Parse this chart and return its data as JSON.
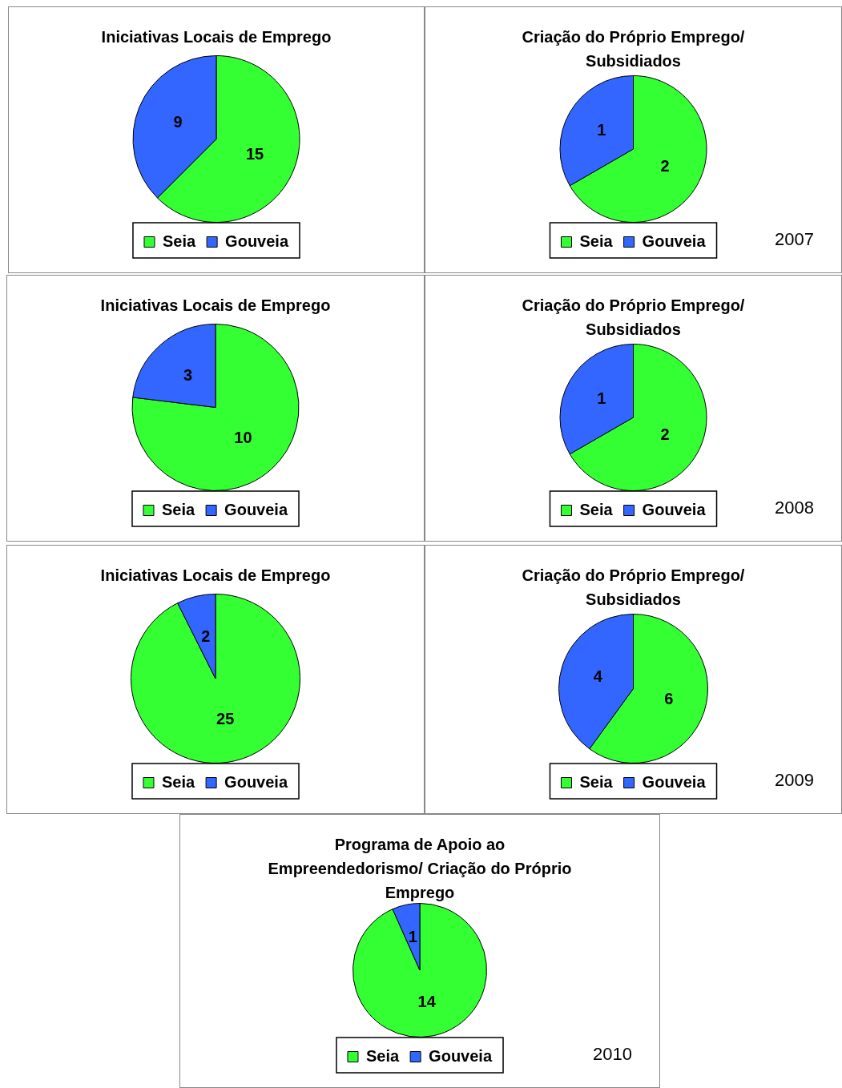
{
  "chart_data": [
    {
      "type": "pie",
      "title": "Iniciativas Locais de Emprego",
      "categories": [
        "Seia",
        "Gouveia"
      ],
      "values": [
        15,
        9
      ],
      "colors": [
        "#33ff33",
        "#3366ff"
      ],
      "data_labels": true,
      "legend": "bottom"
    },
    {
      "type": "pie",
      "title": "Criação do Próprio Emprego/ Subsidiados",
      "categories": [
        "Seia",
        "Gouveia"
      ],
      "values": [
        2,
        1
      ],
      "colors": [
        "#33ff33",
        "#3366ff"
      ],
      "data_labels": true,
      "legend": "bottom",
      "annotations": [
        "2007"
      ]
    },
    {
      "type": "pie",
      "title": "Iniciativas Locais de Emprego",
      "categories": [
        "Seia",
        "Gouveia"
      ],
      "values": [
        10,
        3
      ],
      "colors": [
        "#33ff33",
        "#3366ff"
      ],
      "data_labels": true,
      "legend": "bottom"
    },
    {
      "type": "pie",
      "title": "Criação do Próprio Emprego/ Subsidiados",
      "categories": [
        "Seia",
        "Gouveia"
      ],
      "values": [
        2,
        1
      ],
      "colors": [
        "#33ff33",
        "#3366ff"
      ],
      "data_labels": true,
      "legend": "bottom",
      "annotations": [
        "2008"
      ]
    },
    {
      "type": "pie",
      "title": "Iniciativas Locais de Emprego",
      "categories": [
        "Seia",
        "Gouveia"
      ],
      "values": [
        25,
        2
      ],
      "colors": [
        "#33ff33",
        "#3366ff"
      ],
      "data_labels": true,
      "legend": "bottom"
    },
    {
      "type": "pie",
      "title": "Criação do Próprio Emprego/ Subsidiados",
      "categories": [
        "Seia",
        "Gouveia"
      ],
      "values": [
        6,
        4
      ],
      "colors": [
        "#33ff33",
        "#3366ff"
      ],
      "data_labels": true,
      "legend": "bottom",
      "annotations": [
        "2009"
      ]
    },
    {
      "type": "pie",
      "title": "Programa de Apoio ao Empreendedorismo/ Criação do Próprio Emprego",
      "categories": [
        "Seia",
        "Gouveia"
      ],
      "values": [
        14,
        1
      ],
      "colors": [
        "#33ff33",
        "#3366ff"
      ],
      "data_labels": true,
      "legend": "bottom",
      "annotations": [
        "2010"
      ]
    }
  ]
}
